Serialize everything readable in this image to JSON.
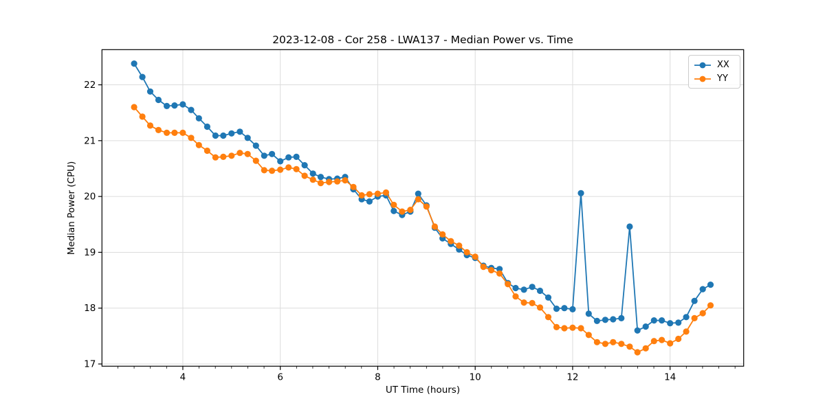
{
  "chart_data": {
    "type": "line",
    "title": "2023-12-08 - Cor 258 - LWA137 - Median Power vs. Time",
    "xlabel": "UT Time (hours)",
    "ylabel": "Median Power (CPU)",
    "xlim": [
      2.34,
      15.51
    ],
    "ylim": [
      16.96,
      22.63
    ],
    "xticks": [
      4,
      6,
      8,
      10,
      12,
      14
    ],
    "yticks": [
      17,
      18,
      19,
      20,
      21,
      22
    ],
    "x_minor_step": 0.33333,
    "grid": true,
    "grid_color": "#dcdcdc",
    "background": "#ffffff",
    "legend_position": "upper right",
    "marker": "o",
    "x": [
      3.0,
      3.17,
      3.33,
      3.5,
      3.67,
      3.83,
      4.0,
      4.17,
      4.33,
      4.5,
      4.67,
      4.83,
      5.0,
      5.17,
      5.33,
      5.5,
      5.67,
      5.83,
      6.0,
      6.17,
      6.33,
      6.5,
      6.67,
      6.83,
      7.0,
      7.17,
      7.33,
      7.5,
      7.67,
      7.83,
      8.0,
      8.17,
      8.33,
      8.5,
      8.67,
      8.83,
      9.0,
      9.17,
      9.33,
      9.5,
      9.67,
      9.83,
      10.0,
      10.17,
      10.33,
      10.5,
      10.67,
      10.83,
      11.0,
      11.17,
      11.33,
      11.5,
      11.67,
      11.83,
      12.0,
      12.17,
      12.33,
      12.5,
      12.67,
      12.83,
      13.0,
      13.17,
      13.33,
      13.5,
      13.67,
      13.83,
      14.0,
      14.17,
      14.33,
      14.5,
      14.67,
      14.83
    ],
    "series": [
      {
        "name": "XX",
        "color": "#1f77b4",
        "values": [
          22.38,
          22.14,
          21.88,
          21.73,
          21.62,
          21.63,
          21.65,
          21.55,
          21.4,
          21.25,
          21.09,
          21.09,
          21.13,
          21.16,
          21.05,
          20.91,
          20.73,
          20.76,
          20.63,
          20.7,
          20.71,
          20.56,
          20.41,
          20.35,
          20.31,
          20.32,
          20.35,
          20.13,
          19.95,
          19.91,
          20.0,
          20.02,
          19.74,
          19.67,
          19.73,
          20.05,
          19.84,
          19.44,
          19.25,
          19.15,
          19.05,
          18.95,
          18.9,
          18.76,
          18.72,
          18.7,
          18.45,
          18.36,
          18.33,
          18.38,
          18.31,
          18.19,
          17.99,
          18.0,
          17.98,
          20.06,
          17.9,
          17.77,
          17.79,
          17.8,
          17.82,
          19.46,
          17.6,
          17.67,
          17.78,
          17.78,
          17.73,
          17.74,
          17.84,
          18.13,
          18.34,
          18.42
        ]
      },
      {
        "name": "YY",
        "color": "#ff7f0e",
        "values": [
          21.6,
          21.43,
          21.27,
          21.19,
          21.14,
          21.14,
          21.14,
          21.05,
          20.92,
          20.82,
          20.7,
          20.71,
          20.73,
          20.78,
          20.76,
          20.64,
          20.47,
          20.46,
          20.48,
          20.52,
          20.49,
          20.37,
          20.3,
          20.24,
          20.26,
          20.27,
          20.29,
          20.17,
          20.02,
          20.04,
          20.05,
          20.07,
          19.85,
          19.73,
          19.76,
          19.95,
          19.82,
          19.46,
          19.32,
          19.2,
          19.12,
          19.0,
          18.92,
          18.74,
          18.68,
          18.62,
          18.43,
          18.21,
          18.1,
          18.09,
          18.01,
          17.84,
          17.66,
          17.64,
          17.65,
          17.64,
          17.52,
          17.39,
          17.36,
          17.39,
          17.36,
          17.31,
          17.21,
          17.28,
          17.41,
          17.43,
          17.37,
          17.45,
          17.58,
          17.82,
          17.91,
          18.05
        ]
      }
    ]
  },
  "legend": {
    "items": [
      {
        "label": "XX",
        "color": "#1f77b4"
      },
      {
        "label": "YY",
        "color": "#ff7f0e"
      }
    ]
  }
}
